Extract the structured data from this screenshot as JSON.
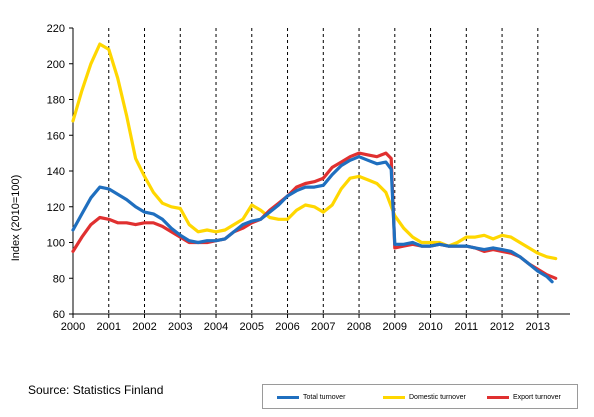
{
  "chart_data": {
    "type": "line",
    "ylabel": "Index (2010=100)",
    "xlabel": "",
    "ylim": [
      60,
      220
    ],
    "yticks": [
      60,
      80,
      100,
      120,
      140,
      160,
      180,
      200,
      220
    ],
    "xlim": [
      2000,
      2013.9
    ],
    "xticks": [
      "2000",
      "2001",
      "2002",
      "2003",
      "2004",
      "2005",
      "2006",
      "2007",
      "2008",
      "2009",
      "2010",
      "2011",
      "2012",
      "2013"
    ],
    "grid": "vertical dashed at year boundaries",
    "legend_position": "bottom-right",
    "source": "Source: Statistics Finland",
    "series": [
      {
        "name": "Total turnover",
        "color": "#1f6fbf",
        "points": [
          [
            2000.0,
            107
          ],
          [
            2000.25,
            116
          ],
          [
            2000.5,
            125
          ],
          [
            2000.75,
            131
          ],
          [
            2001.0,
            130
          ],
          [
            2001.25,
            127
          ],
          [
            2001.5,
            124
          ],
          [
            2001.75,
            120
          ],
          [
            2002.0,
            117
          ],
          [
            2002.25,
            116
          ],
          [
            2002.5,
            113
          ],
          [
            2002.75,
            108
          ],
          [
            2003.0,
            104
          ],
          [
            2003.25,
            101
          ],
          [
            2003.5,
            100
          ],
          [
            2003.75,
            101
          ],
          [
            2004.0,
            101
          ],
          [
            2004.25,
            102
          ],
          [
            2004.5,
            106
          ],
          [
            2004.75,
            110
          ],
          [
            2005.0,
            112
          ],
          [
            2005.25,
            113
          ],
          [
            2005.5,
            117
          ],
          [
            2005.75,
            121
          ],
          [
            2006.0,
            126
          ],
          [
            2006.25,
            129
          ],
          [
            2006.5,
            131
          ],
          [
            2006.75,
            131
          ],
          [
            2007.0,
            132
          ],
          [
            2007.25,
            138
          ],
          [
            2007.5,
            143
          ],
          [
            2007.75,
            146
          ],
          [
            2008.0,
            148
          ],
          [
            2008.25,
            146
          ],
          [
            2008.5,
            144
          ],
          [
            2008.75,
            145
          ],
          [
            2008.9,
            141
          ],
          [
            2009.0,
            99
          ],
          [
            2009.25,
            99
          ],
          [
            2009.5,
            100
          ],
          [
            2009.75,
            98
          ],
          [
            2010.0,
            98
          ],
          [
            2010.25,
            99
          ],
          [
            2010.5,
            98
          ],
          [
            2010.75,
            98
          ],
          [
            2011.0,
            98
          ],
          [
            2011.25,
            97
          ],
          [
            2011.5,
            96
          ],
          [
            2011.75,
            97
          ],
          [
            2012.0,
            96
          ],
          [
            2012.25,
            95
          ],
          [
            2012.5,
            92
          ],
          [
            2012.75,
            88
          ],
          [
            2013.0,
            84
          ],
          [
            2013.25,
            81
          ],
          [
            2013.4,
            78
          ]
        ]
      },
      {
        "name": "Domestic turnover",
        "color": "#ffd700",
        "points": [
          [
            2000.0,
            168
          ],
          [
            2000.25,
            185
          ],
          [
            2000.5,
            200
          ],
          [
            2000.75,
            211
          ],
          [
            2001.0,
            208
          ],
          [
            2001.25,
            192
          ],
          [
            2001.5,
            171
          ],
          [
            2001.75,
            147
          ],
          [
            2002.0,
            137
          ],
          [
            2002.25,
            128
          ],
          [
            2002.5,
            122
          ],
          [
            2002.75,
            120
          ],
          [
            2003.0,
            119
          ],
          [
            2003.25,
            110
          ],
          [
            2003.5,
            106
          ],
          [
            2003.75,
            107
          ],
          [
            2004.0,
            106
          ],
          [
            2004.25,
            107
          ],
          [
            2004.5,
            110
          ],
          [
            2004.75,
            113
          ],
          [
            2005.0,
            121
          ],
          [
            2005.25,
            118
          ],
          [
            2005.5,
            114
          ],
          [
            2005.75,
            113
          ],
          [
            2006.0,
            113
          ],
          [
            2006.25,
            118
          ],
          [
            2006.5,
            121
          ],
          [
            2006.75,
            120
          ],
          [
            2007.0,
            117
          ],
          [
            2007.25,
            121
          ],
          [
            2007.5,
            130
          ],
          [
            2007.75,
            136
          ],
          [
            2008.0,
            137
          ],
          [
            2008.25,
            135
          ],
          [
            2008.5,
            133
          ],
          [
            2008.75,
            128
          ],
          [
            2009.0,
            115
          ],
          [
            2009.25,
            108
          ],
          [
            2009.5,
            103
          ],
          [
            2009.75,
            100
          ],
          [
            2010.0,
            100
          ],
          [
            2010.25,
            100
          ],
          [
            2010.5,
            98
          ],
          [
            2010.75,
            100
          ],
          [
            2011.0,
            103
          ],
          [
            2011.25,
            103
          ],
          [
            2011.5,
            104
          ],
          [
            2011.75,
            102
          ],
          [
            2012.0,
            104
          ],
          [
            2012.25,
            103
          ],
          [
            2012.5,
            100
          ],
          [
            2012.75,
            97
          ],
          [
            2013.0,
            94
          ],
          [
            2013.25,
            92
          ],
          [
            2013.5,
            91
          ]
        ]
      },
      {
        "name": "Export turnover",
        "color": "#e03030",
        "points": [
          [
            2000.0,
            95
          ],
          [
            2000.25,
            103
          ],
          [
            2000.5,
            110
          ],
          [
            2000.75,
            114
          ],
          [
            2001.0,
            113
          ],
          [
            2001.25,
            111
          ],
          [
            2001.5,
            111
          ],
          [
            2001.75,
            110
          ],
          [
            2002.0,
            111
          ],
          [
            2002.25,
            111
          ],
          [
            2002.5,
            109
          ],
          [
            2002.75,
            106
          ],
          [
            2003.0,
            103
          ],
          [
            2003.25,
            100
          ],
          [
            2003.5,
            100
          ],
          [
            2003.75,
            100
          ],
          [
            2004.0,
            101
          ],
          [
            2004.25,
            102
          ],
          [
            2004.5,
            106
          ],
          [
            2004.75,
            108
          ],
          [
            2005.0,
            111
          ],
          [
            2005.25,
            113
          ],
          [
            2005.5,
            118
          ],
          [
            2005.75,
            122
          ],
          [
            2006.0,
            126
          ],
          [
            2006.25,
            131
          ],
          [
            2006.5,
            133
          ],
          [
            2006.75,
            134
          ],
          [
            2007.0,
            136
          ],
          [
            2007.25,
            142
          ],
          [
            2007.5,
            145
          ],
          [
            2007.75,
            148
          ],
          [
            2008.0,
            150
          ],
          [
            2008.25,
            149
          ],
          [
            2008.5,
            148
          ],
          [
            2008.75,
            150
          ],
          [
            2008.9,
            147
          ],
          [
            2009.0,
            97
          ],
          [
            2009.25,
            98
          ],
          [
            2009.5,
            99
          ],
          [
            2009.75,
            98
          ],
          [
            2010.0,
            98
          ],
          [
            2010.25,
            99
          ],
          [
            2010.5,
            98
          ],
          [
            2010.75,
            98
          ],
          [
            2011.0,
            98
          ],
          [
            2011.25,
            97
          ],
          [
            2011.5,
            95
          ],
          [
            2011.75,
            96
          ],
          [
            2012.0,
            95
          ],
          [
            2012.25,
            94
          ],
          [
            2012.5,
            92
          ],
          [
            2012.75,
            88
          ],
          [
            2013.0,
            85
          ],
          [
            2013.25,
            82
          ],
          [
            2013.5,
            80
          ]
        ]
      }
    ]
  }
}
